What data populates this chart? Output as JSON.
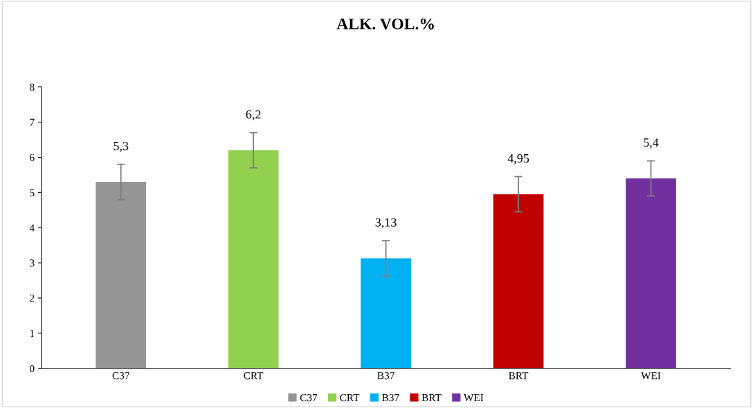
{
  "chart_data": {
    "type": "bar",
    "title": "ALK. VOL.%",
    "categories": [
      "C37",
      "CRT",
      "B37",
      "BRT",
      "WEI"
    ],
    "series": [
      {
        "name": "C37",
        "color": "#959595",
        "values": [
          5.3,
          null,
          null,
          null,
          null
        ],
        "errors": [
          0.5,
          null,
          null,
          null,
          null
        ],
        "value_labels": [
          "5,3",
          null,
          null,
          null,
          null
        ]
      },
      {
        "name": "CRT",
        "color": "#92d050",
        "values": [
          null,
          6.2,
          null,
          null,
          null
        ],
        "errors": [
          null,
          0.5,
          null,
          null,
          null
        ],
        "value_labels": [
          null,
          "6,2",
          null,
          null,
          null
        ]
      },
      {
        "name": "B37",
        "color": "#00b0f0",
        "values": [
          null,
          null,
          3.13,
          null,
          null
        ],
        "errors": [
          null,
          null,
          0.5,
          null,
          null
        ],
        "value_labels": [
          null,
          null,
          "3,13",
          null,
          null
        ]
      },
      {
        "name": "BRT",
        "color": "#c00000",
        "values": [
          null,
          null,
          null,
          4.95,
          null
        ],
        "errors": [
          null,
          null,
          null,
          0.5,
          null
        ],
        "value_labels": [
          null,
          null,
          null,
          "4,95",
          null
        ]
      },
      {
        "name": "WEI",
        "color": "#7030a0",
        "values": [
          null,
          null,
          null,
          null,
          5.4
        ],
        "errors": [
          null,
          null,
          null,
          null,
          0.5
        ],
        "value_labels": [
          null,
          null,
          null,
          null,
          "5,4"
        ]
      }
    ],
    "ylim": [
      0,
      8
    ],
    "yticks": [
      0,
      1,
      2,
      3,
      4,
      5,
      6,
      7,
      8
    ],
    "grid": false,
    "legend": "bottom"
  }
}
